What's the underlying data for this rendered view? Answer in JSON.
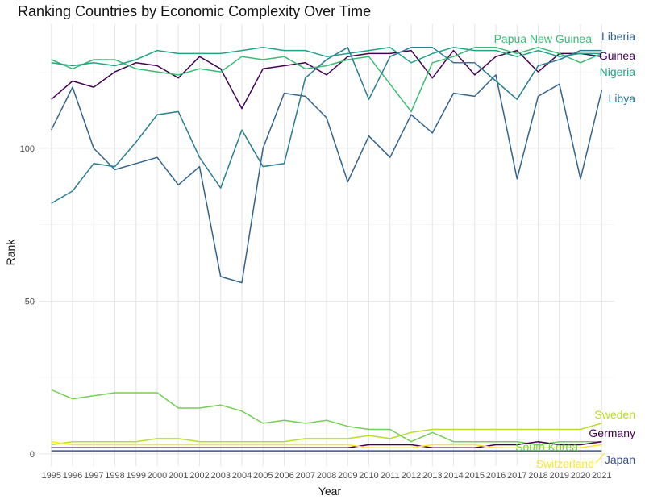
{
  "chart_data": {
    "type": "line",
    "title": "Ranking Countries by Economic Complexity Over Time",
    "xlabel": "Year",
    "ylabel": "Rank",
    "x": [
      1995,
      1996,
      1997,
      1998,
      1999,
      2000,
      2001,
      2002,
      2003,
      2004,
      2005,
      2006,
      2007,
      2008,
      2009,
      2010,
      2011,
      2012,
      2013,
      2014,
      2015,
      2016,
      2017,
      2018,
      2019,
      2020,
      2021
    ],
    "xlim": [
      1995,
      2021
    ],
    "ylim": [
      0,
      140
    ],
    "yticks": [
      0,
      50,
      100
    ],
    "grid": true,
    "legend": "direct labels at line ends",
    "series": [
      {
        "name": "Liberia",
        "color": "#33638d",
        "values": [
          106,
          120,
          100,
          93,
          95,
          97,
          88,
          94,
          58,
          56,
          100,
          118,
          117,
          110,
          89,
          104,
          97,
          111,
          105,
          118,
          117,
          124,
          90,
          117,
          121,
          90,
          119
        ]
      },
      {
        "name": "Guinea",
        "color": "#440154",
        "values": [
          116,
          122,
          120,
          125,
          128,
          127,
          123,
          130,
          126,
          113,
          126,
          127,
          128,
          124,
          130,
          131,
          131,
          132,
          123,
          132,
          124,
          130,
          132,
          125,
          131,
          131,
          130
        ]
      },
      {
        "name": "Papua New Guinea",
        "color": "#3cbb75",
        "values": [
          129,
          126,
          129,
          129,
          126,
          125,
          124,
          126,
          125,
          130,
          129,
          130,
          126,
          127,
          129,
          130,
          121,
          112,
          128,
          130,
          133,
          133,
          131,
          133,
          131,
          128,
          131
        ]
      },
      {
        "name": "Nigeria",
        "color": "#20a486",
        "values": [
          128,
          127,
          128,
          127,
          129,
          132,
          131,
          131,
          131,
          132,
          133,
          132,
          132,
          130,
          131,
          132,
          133,
          128,
          131,
          133,
          132,
          132,
          130,
          132,
          130,
          131,
          131
        ]
      },
      {
        "name": "Libya",
        "color": "#287d8e",
        "values": [
          82,
          86,
          95,
          94,
          102,
          111,
          112,
          97,
          87,
          106,
          94,
          95,
          123,
          129,
          133,
          116,
          130,
          133,
          133,
          128,
          128,
          122,
          116,
          127,
          129,
          132,
          132
        ]
      },
      {
        "name": "Sweden",
        "color": "#b8de29",
        "values": [
          3,
          4,
          4,
          4,
          4,
          5,
          5,
          4,
          4,
          4,
          4,
          4,
          5,
          5,
          5,
          6,
          5,
          7,
          8,
          8,
          8,
          8,
          8,
          8,
          8,
          8,
          10
        ]
      },
      {
        "name": "South Korea",
        "color": "#73d055",
        "values": [
          21,
          18,
          19,
          20,
          20,
          20,
          15,
          15,
          16,
          14,
          10,
          11,
          10,
          11,
          9,
          8,
          8,
          4,
          7,
          4,
          4,
          4,
          4,
          3,
          4,
          4,
          4
        ]
      },
      {
        "name": "Germany",
        "color": "#440154",
        "values": [
          2,
          2,
          2,
          2,
          2,
          2,
          2,
          2,
          2,
          2,
          2,
          2,
          2,
          2,
          2,
          3,
          3,
          3,
          2,
          2,
          2,
          3,
          3,
          4,
          3,
          3,
          4
        ]
      },
      {
        "name": "Switzerland",
        "color": "#fde725",
        "values": [
          4,
          3,
          3,
          3,
          3,
          3,
          3,
          3,
          3,
          3,
          3,
          3,
          3,
          3,
          3,
          2,
          2,
          2,
          3,
          3,
          3,
          2,
          2,
          2,
          2,
          2,
          3
        ]
      },
      {
        "name": "Japan",
        "color": "#3b528b",
        "values": [
          1,
          1,
          1,
          1,
          1,
          1,
          1,
          1,
          1,
          1,
          1,
          1,
          1,
          1,
          1,
          1,
          1,
          1,
          1,
          1,
          1,
          1,
          1,
          1,
          1,
          1,
          1
        ]
      }
    ]
  }
}
